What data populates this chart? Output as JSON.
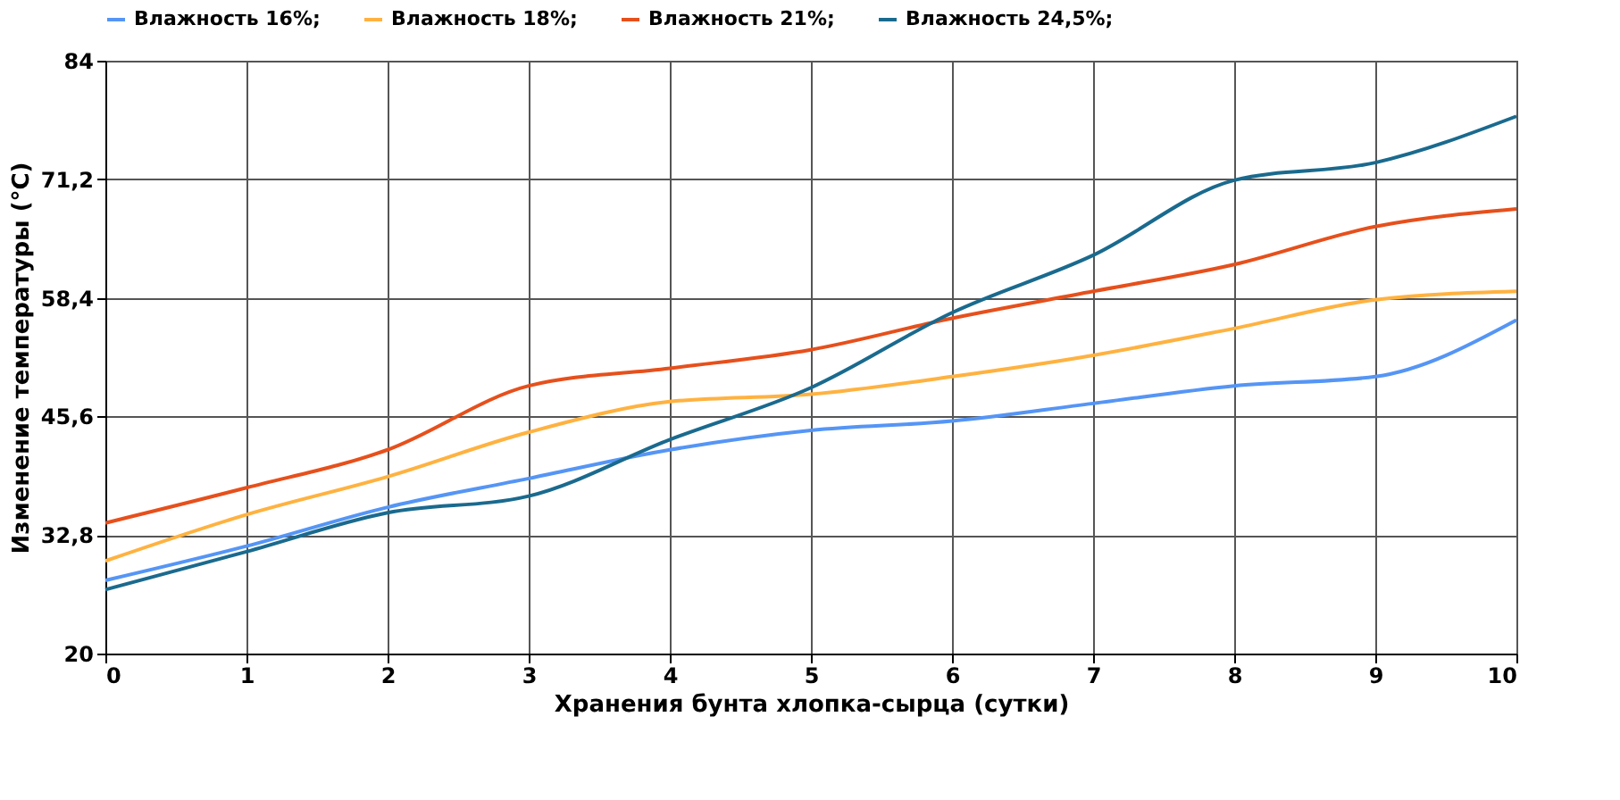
{
  "chart_data": {
    "type": "line",
    "xlabel": "Хранения бунта хлопка-сырца (сутки)",
    "ylabel": "Изменение температуры (°C)",
    "x": [
      0,
      1,
      2,
      3,
      4,
      5,
      6,
      7,
      8,
      9,
      10
    ],
    "series": [
      {
        "name": "Влажность 16%;",
        "color": "#5595f5",
        "values": [
          27.9,
          31.6,
          35.8,
          38.9,
          42.0,
          44.1,
          45.1,
          47.0,
          48.9,
          49.9,
          56.0
        ]
      },
      {
        "name": "Влажность 18%;",
        "color": "#ffb240",
        "values": [
          30.0,
          35.0,
          39.1,
          43.9,
          47.2,
          48.0,
          49.9,
          52.2,
          55.1,
          58.2,
          59.1
        ]
      },
      {
        "name": "Влажность 21%;",
        "color": "#e6501c",
        "values": [
          34.1,
          37.9,
          42.0,
          48.9,
          50.8,
          52.8,
          56.2,
          59.1,
          62.0,
          66.1,
          68.0
        ]
      },
      {
        "name": "Влажность 24,5%;",
        "color": "#1a6a8e",
        "values": [
          26.9,
          31.0,
          35.2,
          37.0,
          43.1,
          48.7,
          56.8,
          63.0,
          71.1,
          73.0,
          78.0
        ]
      }
    ],
    "xlim": [
      0,
      10
    ],
    "xticks": [
      0,
      1,
      2,
      3,
      4,
      5,
      6,
      7,
      8,
      9,
      10
    ],
    "ylim": [
      20,
      84
    ],
    "yticks": [
      20,
      {
        "value": 32.8,
        "label": "32,8"
      },
      {
        "value": 45.6,
        "label": "45,6"
      },
      {
        "value": 58.4,
        "label": "58,4"
      },
      {
        "value": 71.2,
        "label": "71,2"
      },
      84
    ],
    "grid": true,
    "legend": "top",
    "marker": "none",
    "line_style": "solid"
  }
}
